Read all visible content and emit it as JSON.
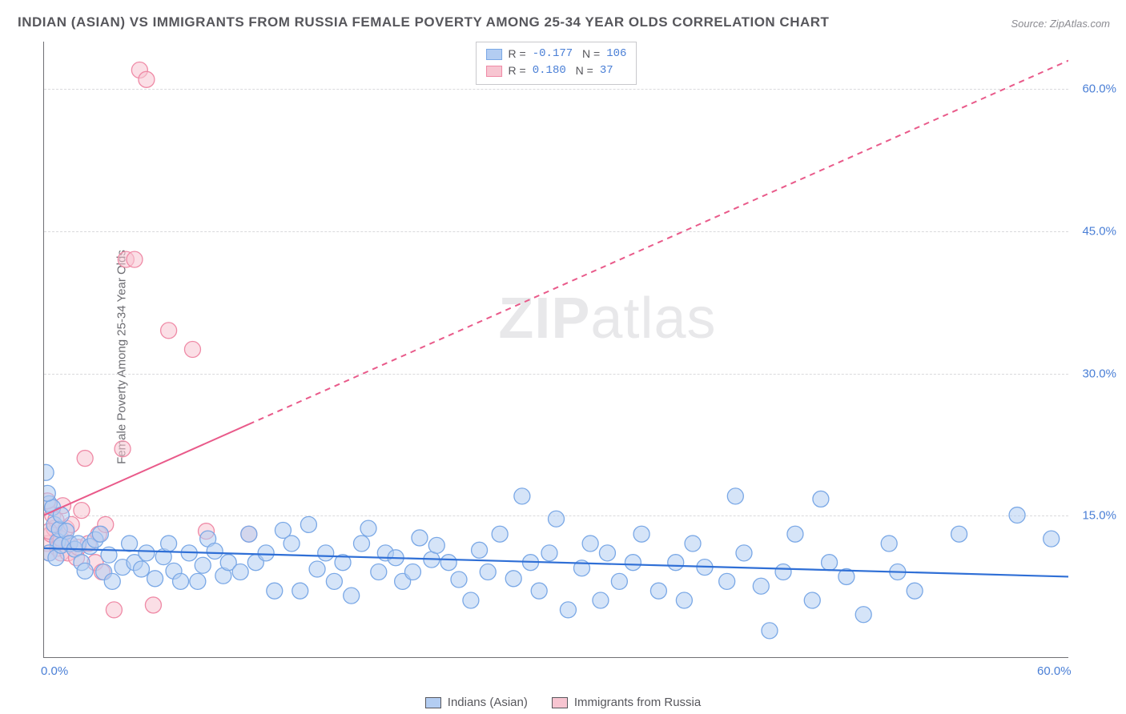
{
  "title": "INDIAN (ASIAN) VS IMMIGRANTS FROM RUSSIA FEMALE POVERTY AMONG 25-34 YEAR OLDS CORRELATION CHART",
  "source": "Source: ZipAtlas.com",
  "ylabel": "Female Poverty Among 25-34 Year Olds",
  "watermark_bold": "ZIP",
  "watermark_rest": "atlas",
  "chart": {
    "type": "scatter",
    "xlim": [
      0,
      60
    ],
    "ylim": [
      0,
      65
    ],
    "yticks": [
      {
        "v": 15,
        "label": "15.0%"
      },
      {
        "v": 30,
        "label": "30.0%"
      },
      {
        "v": 45,
        "label": "45.0%"
      },
      {
        "v": 60,
        "label": "60.0%"
      }
    ],
    "xticks": [
      {
        "v": 0,
        "label": "0.0%"
      },
      {
        "v": 60,
        "label": "60.0%"
      }
    ],
    "background_color": "#ffffff",
    "grid_color": "#d9d9dc",
    "axis_color": "#707074",
    "series": [
      {
        "name": "Indians (Asian)",
        "color_fill": "#b3cdf2",
        "color_stroke": "#7aa8e6",
        "fill_opacity": 0.55,
        "marker_r": 10,
        "trend": {
          "x1": 0,
          "y1": 11.5,
          "x2": 60,
          "y2": 8.5,
          "color": "#2f6fd6",
          "width": 2.2,
          "dash_from_x": 999
        },
        "R": "-0.177",
        "N": "106",
        "points": [
          [
            0.1,
            19.5
          ],
          [
            0.3,
            16.2
          ],
          [
            0.6,
            14.0
          ],
          [
            0.5,
            15.8
          ],
          [
            0.8,
            12.2
          ],
          [
            0.3,
            11.0
          ],
          [
            0.9,
            13.5
          ],
          [
            0.2,
            17.3
          ],
          [
            0.7,
            10.5
          ],
          [
            1.0,
            11.8
          ],
          [
            1.3,
            13.3
          ],
          [
            1.5,
            12.0
          ],
          [
            1.0,
            15.0
          ],
          [
            1.8,
            11.4
          ],
          [
            2.0,
            12.0
          ],
          [
            2.2,
            10.0
          ],
          [
            2.4,
            9.1
          ],
          [
            2.7,
            11.7
          ],
          [
            3.0,
            12.4
          ],
          [
            3.3,
            13.0
          ],
          [
            3.5,
            9.0
          ],
          [
            3.8,
            10.8
          ],
          [
            4.0,
            8.0
          ],
          [
            4.6,
            9.5
          ],
          [
            5.0,
            12.0
          ],
          [
            5.3,
            10.0
          ],
          [
            5.7,
            9.3
          ],
          [
            6.0,
            11.0
          ],
          [
            6.5,
            8.3
          ],
          [
            7.0,
            10.6
          ],
          [
            7.3,
            12.0
          ],
          [
            7.6,
            9.1
          ],
          [
            8.0,
            8.0
          ],
          [
            8.5,
            11.0
          ],
          [
            9.0,
            8.0
          ],
          [
            9.3,
            9.7
          ],
          [
            9.6,
            12.5
          ],
          [
            10.0,
            11.2
          ],
          [
            10.5,
            8.6
          ],
          [
            10.8,
            10.0
          ],
          [
            11.5,
            9.0
          ],
          [
            12.0,
            13.0
          ],
          [
            12.4,
            10.0
          ],
          [
            13.0,
            11.0
          ],
          [
            13.5,
            7.0
          ],
          [
            14.0,
            13.4
          ],
          [
            14.5,
            12.0
          ],
          [
            15.0,
            7.0
          ],
          [
            15.5,
            14.0
          ],
          [
            16.0,
            9.3
          ],
          [
            16.5,
            11.0
          ],
          [
            17.0,
            8.0
          ],
          [
            17.5,
            10.0
          ],
          [
            18.0,
            6.5
          ],
          [
            18.6,
            12.0
          ],
          [
            19.0,
            13.6
          ],
          [
            19.6,
            9.0
          ],
          [
            20.0,
            11.0
          ],
          [
            20.6,
            10.5
          ],
          [
            21.0,
            8.0
          ],
          [
            21.6,
            9.0
          ],
          [
            22.0,
            12.6
          ],
          [
            22.7,
            10.3
          ],
          [
            23.0,
            11.8
          ],
          [
            23.7,
            10.0
          ],
          [
            24.3,
            8.2
          ],
          [
            25.0,
            6.0
          ],
          [
            25.5,
            11.3
          ],
          [
            26.0,
            9.0
          ],
          [
            26.7,
            13.0
          ],
          [
            27.5,
            8.3
          ],
          [
            28.0,
            17.0
          ],
          [
            28.5,
            10.0
          ],
          [
            29.0,
            7.0
          ],
          [
            29.6,
            11.0
          ],
          [
            30.0,
            14.6
          ],
          [
            30.7,
            5.0
          ],
          [
            31.5,
            9.4
          ],
          [
            32.0,
            12.0
          ],
          [
            32.6,
            6.0
          ],
          [
            33.0,
            11.0
          ],
          [
            33.7,
            8.0
          ],
          [
            34.5,
            10.0
          ],
          [
            35.0,
            13.0
          ],
          [
            36.0,
            7.0
          ],
          [
            37.0,
            10.0
          ],
          [
            37.5,
            6.0
          ],
          [
            38.0,
            12.0
          ],
          [
            38.7,
            9.5
          ],
          [
            40.0,
            8.0
          ],
          [
            40.5,
            17.0
          ],
          [
            41.0,
            11.0
          ],
          [
            42.0,
            7.5
          ],
          [
            42.5,
            2.8
          ],
          [
            43.3,
            9.0
          ],
          [
            44.0,
            13.0
          ],
          [
            45.0,
            6.0
          ],
          [
            45.5,
            16.7
          ],
          [
            46.0,
            10.0
          ],
          [
            47.0,
            8.5
          ],
          [
            48.0,
            4.5
          ],
          [
            49.5,
            12.0
          ],
          [
            50.0,
            9.0
          ],
          [
            51.0,
            7.0
          ],
          [
            53.6,
            13.0
          ],
          [
            57.0,
            15.0
          ],
          [
            59.0,
            12.5
          ]
        ]
      },
      {
        "name": "Immigrants from Russia",
        "color_fill": "#f7c5d1",
        "color_stroke": "#ef8aa6",
        "fill_opacity": 0.55,
        "marker_r": 10,
        "trend": {
          "x1": 0,
          "y1": 15.0,
          "x2": 60,
          "y2": 63.0,
          "color": "#e95a8a",
          "width": 2.0,
          "dash_from_x": 12.0
        },
        "R": "0.180",
        "N": "37",
        "points": [
          [
            0.2,
            12.0
          ],
          [
            0.3,
            11.0
          ],
          [
            0.4,
            13.0
          ],
          [
            0.5,
            15.0
          ],
          [
            0.2,
            16.5
          ],
          [
            0.6,
            13.6
          ],
          [
            0.7,
            14.5
          ],
          [
            0.8,
            11.5
          ],
          [
            0.9,
            12.6
          ],
          [
            0.3,
            13.3
          ],
          [
            1.0,
            11.0
          ],
          [
            1.0,
            12.5
          ],
          [
            1.1,
            16.0
          ],
          [
            1.3,
            13.6
          ],
          [
            1.4,
            11.0
          ],
          [
            1.5,
            12.0
          ],
          [
            1.6,
            14.0
          ],
          [
            1.9,
            10.5
          ],
          [
            2.0,
            11.6
          ],
          [
            2.2,
            15.5
          ],
          [
            2.4,
            21.0
          ],
          [
            2.6,
            12.0
          ],
          [
            3.0,
            10.0
          ],
          [
            3.2,
            13.0
          ],
          [
            3.4,
            9.0
          ],
          [
            3.6,
            14.0
          ],
          [
            4.1,
            5.0
          ],
          [
            4.6,
            22.0
          ],
          [
            4.8,
            42.0
          ],
          [
            5.3,
            42.0
          ],
          [
            5.6,
            62.0
          ],
          [
            6.0,
            61.0
          ],
          [
            6.4,
            5.5
          ],
          [
            7.3,
            34.5
          ],
          [
            8.7,
            32.5
          ],
          [
            9.5,
            13.3
          ],
          [
            12.0,
            13.0
          ]
        ]
      }
    ]
  },
  "legend_bottom": [
    {
      "label": "Indians (Asian)",
      "fill": "#b3cdf2",
      "stroke": "#7aa8e6"
    },
    {
      "label": "Immigrants from Russia",
      "fill": "#f7c5d1",
      "stroke": "#ef8aa6"
    }
  ]
}
